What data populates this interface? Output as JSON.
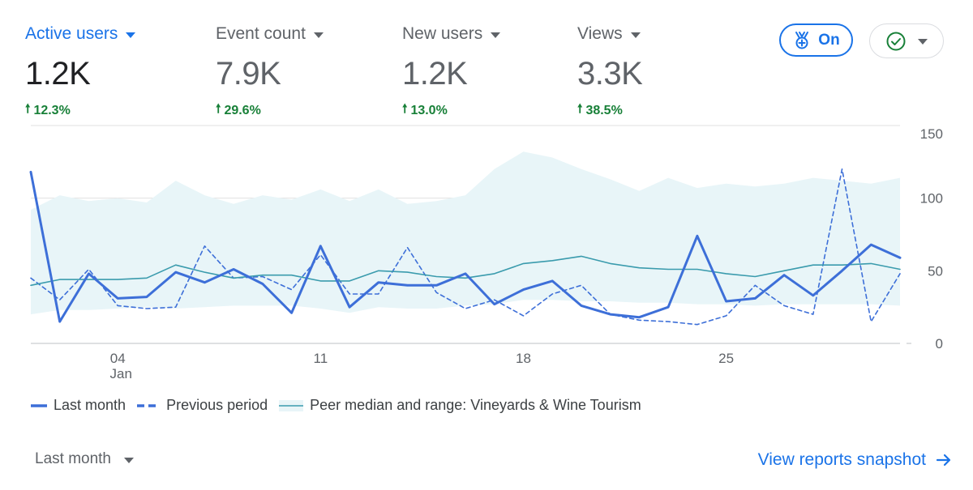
{
  "metrics": [
    {
      "label": "Active users",
      "value": "1.2K",
      "change": "12.3%"
    },
    {
      "label": "Event count",
      "value": "7.9K",
      "change": "29.6%"
    },
    {
      "label": "New users",
      "value": "1.2K",
      "change": "13.0%"
    },
    {
      "label": "Views",
      "value": "3.3K",
      "change": "38.5%"
    }
  ],
  "insights_toggle": {
    "label": "On"
  },
  "legend": {
    "current": "Last month",
    "previous": "Previous period",
    "peer": "Peer median and range: Vineyards & Wine Tourism"
  },
  "footer": {
    "period_label": "Last month",
    "snapshot_label": "View reports snapshot"
  },
  "colors": {
    "accent": "#1a73e8",
    "current_line": "#3d6fd8",
    "peer_line": "#3a9bad",
    "peer_band": "#e8f5f8",
    "positive": "#188038"
  },
  "chart_data": {
    "type": "line",
    "x_days": [
      "Jan 1",
      "Jan 2",
      "Jan 3",
      "Jan 4",
      "Jan 5",
      "Jan 6",
      "Jan 7",
      "Jan 8",
      "Jan 9",
      "Jan 10",
      "Jan 11",
      "Jan 12",
      "Jan 13",
      "Jan 14",
      "Jan 15",
      "Jan 16",
      "Jan 17",
      "Jan 18",
      "Jan 19",
      "Jan 20",
      "Jan 21",
      "Jan 22",
      "Jan 23",
      "Jan 24",
      "Jan 25",
      "Jan 26",
      "Jan 27",
      "Jan 28",
      "Jan 29",
      "Jan 30",
      "Jan 31"
    ],
    "x_ticks": [
      {
        "label": "04",
        "sublabel": "Jan",
        "day": "Jan 4"
      },
      {
        "label": "11",
        "sublabel": "",
        "day": "Jan 11"
      },
      {
        "label": "18",
        "sublabel": "",
        "day": "Jan 18"
      },
      {
        "label": "25",
        "sublabel": "",
        "day": "Jan 25"
      }
    ],
    "y_ticks": [
      0,
      50,
      100,
      150
    ],
    "ylim": [
      0,
      150
    ],
    "series": [
      {
        "name": "Last month",
        "style": "solid",
        "values": [
          118,
          15,
          48,
          31,
          32,
          49,
          42,
          51,
          41,
          21,
          67,
          25,
          42,
          40,
          40,
          48,
          27,
          37,
          43,
          26,
          20,
          18,
          25,
          74,
          29,
          31,
          47,
          33,
          50,
          68,
          59
        ]
      },
      {
        "name": "Previous period",
        "style": "dashed",
        "values": [
          45,
          30,
          51,
          26,
          24,
          25,
          67,
          45,
          46,
          37,
          61,
          34,
          34,
          66,
          35,
          24,
          30,
          19,
          34,
          40,
          20,
          16,
          15,
          13,
          19,
          40,
          26,
          20,
          120,
          15,
          48
        ]
      },
      {
        "name": "Peer median",
        "style": "peer",
        "values": [
          40,
          44,
          44,
          44,
          45,
          54,
          49,
          45,
          47,
          47,
          43,
          43,
          50,
          49,
          46,
          45,
          48,
          55,
          57,
          60,
          55,
          52,
          51,
          51,
          48,
          46,
          50,
          54,
          54,
          55,
          51
        ]
      }
    ],
    "peer_range": {
      "upper": [
        92,
        102,
        98,
        100,
        97,
        112,
        102,
        96,
        102,
        99,
        106,
        98,
        106,
        96,
        98,
        102,
        120,
        132,
        128,
        120,
        113,
        105,
        114,
        107,
        110,
        108,
        110,
        114,
        112,
        110,
        114
      ],
      "lower": [
        20,
        23,
        23,
        24,
        25,
        24,
        25,
        26,
        26,
        26,
        24,
        21,
        25,
        24,
        24,
        26,
        27,
        30,
        30,
        29,
        29,
        28,
        28,
        27,
        27,
        26,
        27,
        27,
        27,
        27,
        26
      ]
    }
  }
}
